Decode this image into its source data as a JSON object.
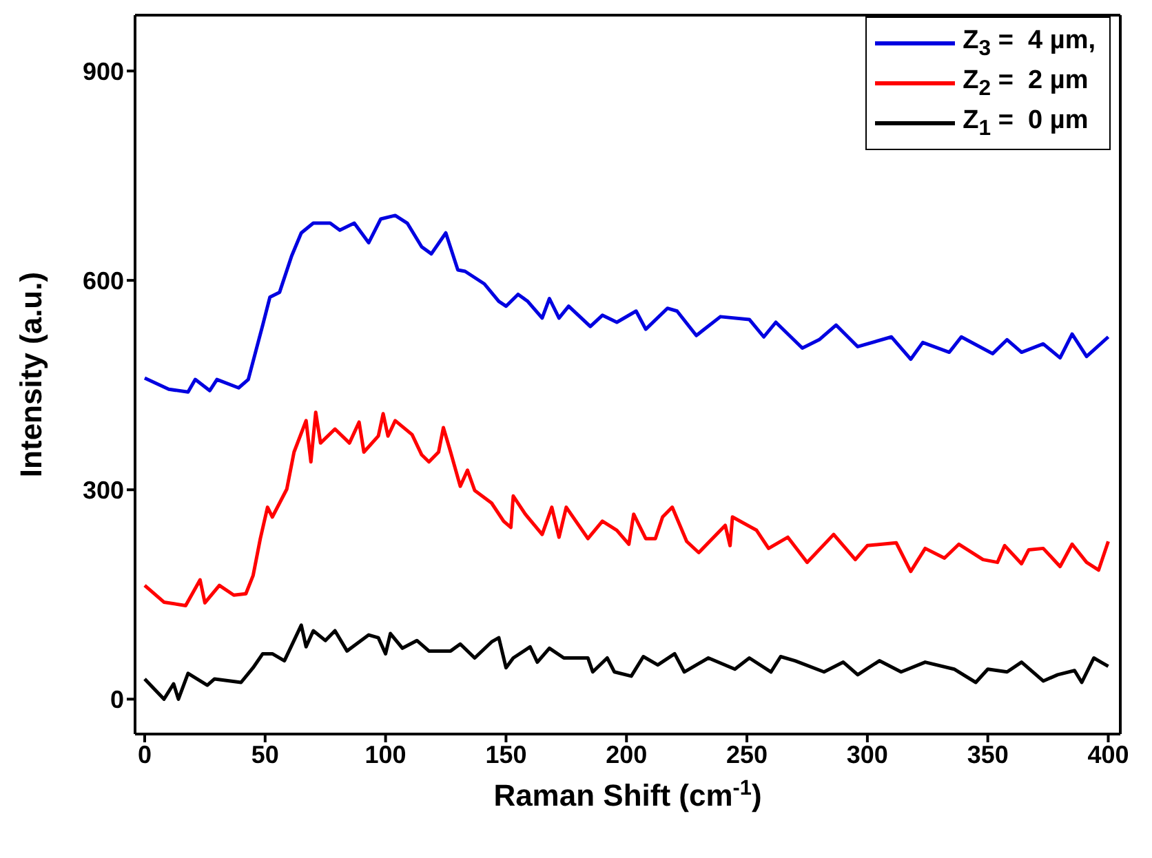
{
  "chart_data": {
    "type": "line",
    "xlabel": "Raman Shift (cm$^{-1}$)",
    "ylabel": "Intensity (a.u.)",
    "xlim": [
      -4,
      405
    ],
    "ylim": [
      -50,
      980
    ],
    "xticks": [
      0,
      50,
      100,
      150,
      200,
      250,
      300,
      350,
      400
    ],
    "yticks": [
      0,
      300,
      600,
      900
    ],
    "legend": "top right",
    "marker": "none",
    "line_style": "solid",
    "series": [
      {
        "name": "Z$_{3}$ =  4 µm,",
        "color": "#0000e0",
        "x": [
          0,
          10,
          18,
          21,
          27,
          30,
          39,
          43,
          46,
          49,
          52,
          56,
          61,
          65,
          70,
          73,
          77,
          81,
          87,
          93,
          98,
          104,
          109,
          115,
          119,
          125,
          130,
          133,
          141,
          147,
          150,
          155,
          159,
          165,
          168,
          172,
          176,
          185,
          190,
          196,
          204,
          208,
          217,
          221,
          229,
          239,
          251,
          257,
          262,
          273,
          280,
          287,
          296,
          310,
          318,
          323,
          334,
          339,
          352,
          358,
          364,
          373,
          380,
          385,
          391,
          400
        ],
        "values": [
          460,
          444,
          440,
          458,
          442,
          458,
          446,
          458,
          497,
          536,
          576,
          583,
          635,
          668,
          682,
          682,
          682,
          672,
          682,
          654,
          688,
          693,
          682,
          648,
          638,
          668,
          615,
          613,
          595,
          570,
          563,
          580,
          570,
          546,
          574,
          546,
          563,
          534,
          550,
          540,
          556,
          530,
          560,
          556,
          521,
          548,
          544,
          519,
          540,
          503,
          515,
          536,
          505,
          519,
          487,
          511,
          497,
          519,
          495,
          515,
          497,
          509,
          489,
          523,
          491,
          519
        ]
      },
      {
        "name": "Z$_{2}$ =  2 µm",
        "color": "#ff0000",
        "x": [
          0,
          8,
          17,
          23,
          25,
          31,
          37,
          42,
          45,
          48,
          51,
          53,
          59,
          62,
          67,
          69,
          71,
          73,
          79,
          85,
          89,
          91,
          97,
          99,
          101,
          104,
          111,
          115,
          118,
          122,
          124,
          127,
          131,
          134,
          137,
          144,
          149,
          152,
          153,
          158,
          165,
          169,
          172,
          175,
          184,
          190,
          196,
          201,
          203,
          208,
          212,
          215,
          219,
          225,
          230,
          241,
          243,
          244,
          254,
          259,
          267,
          275,
          286,
          295,
          300,
          312,
          318,
          324,
          332,
          338,
          348,
          354,
          357,
          364,
          367,
          373,
          380,
          385,
          391,
          396,
          400
        ],
        "values": [
          163,
          139,
          134,
          171,
          138,
          163,
          149,
          151,
          177,
          230,
          275,
          261,
          301,
          354,
          399,
          340,
          411,
          367,
          387,
          367,
          397,
          354,
          377,
          409,
          377,
          399,
          379,
          350,
          340,
          354,
          389,
          354,
          305,
          328,
          299,
          281,
          255,
          246,
          291,
          265,
          236,
          275,
          232,
          275,
          230,
          255,
          242,
          222,
          265,
          230,
          230,
          261,
          275,
          226,
          210,
          249,
          220,
          261,
          242,
          216,
          232,
          196,
          236,
          200,
          220,
          224,
          183,
          216,
          202,
          222,
          200,
          196,
          220,
          194,
          214,
          216,
          190,
          222,
          196,
          185,
          226
        ]
      },
      {
        "name": "Z$_{1}$ =  0 µm",
        "color": "#000000",
        "x": [
          0,
          8,
          12,
          14,
          18,
          26,
          29,
          40,
          45,
          49,
          53,
          58,
          65,
          67,
          70,
          75,
          79,
          84,
          93,
          97,
          100,
          102,
          107,
          113,
          118,
          127,
          131,
          137,
          144,
          147,
          150,
          153,
          160,
          163,
          168,
          174,
          184,
          186,
          192,
          195,
          202,
          207,
          213,
          220,
          224,
          234,
          245,
          251,
          260,
          264,
          270,
          282,
          290,
          296,
          305,
          314,
          324,
          336,
          345,
          350,
          358,
          364,
          373,
          379,
          386,
          389,
          394,
          397,
          400
        ],
        "values": [
          29,
          0,
          22,
          0,
          37,
          20,
          29,
          24,
          45,
          65,
          65,
          55,
          106,
          75,
          98,
          84,
          98,
          69,
          92,
          88,
          65,
          94,
          73,
          84,
          69,
          69,
          79,
          59,
          82,
          88,
          45,
          59,
          75,
          53,
          73,
          59,
          59,
          39,
          59,
          39,
          33,
          61,
          49,
          65,
          39,
          59,
          43,
          59,
          39,
          61,
          55,
          39,
          53,
          35,
          55,
          39,
          53,
          43,
          24,
          43,
          39,
          53,
          26,
          35,
          41,
          24,
          59,
          53,
          47
        ]
      }
    ]
  }
}
